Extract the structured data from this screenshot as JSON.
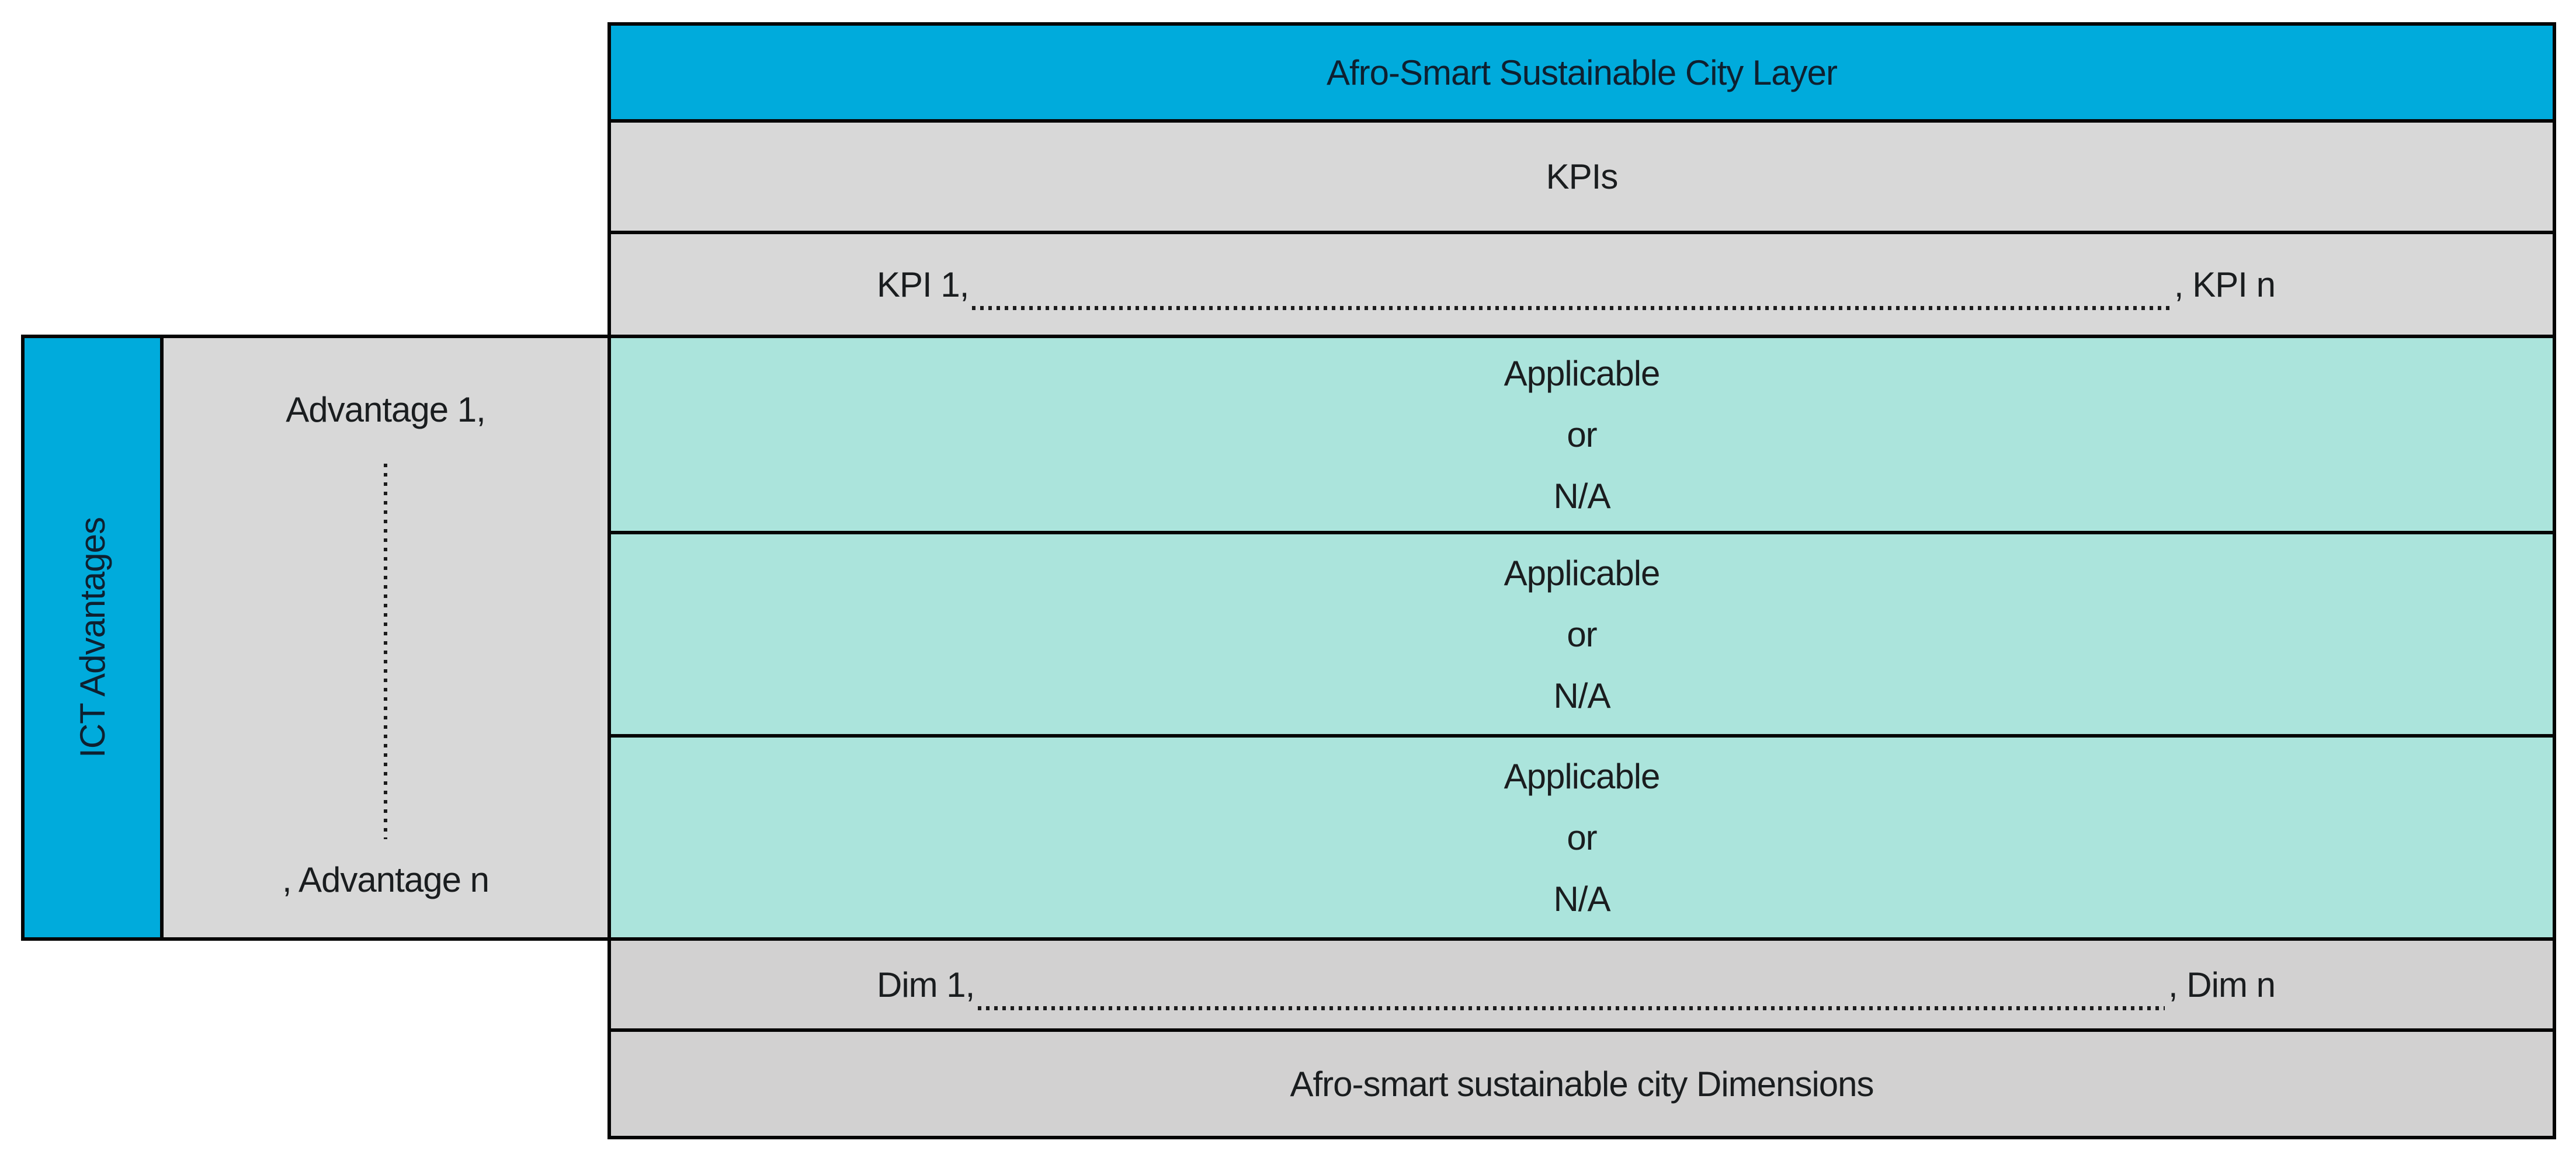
{
  "figure": {
    "header": {
      "title": "Afro-Smart Sustainable City Layer"
    },
    "kpis": {
      "label": "KPIs",
      "range_start": "KPI 1,",
      "range_end": ", KPI n",
      "leader_style": "dotted"
    },
    "applicable_rows": [
      {
        "line1": "Applicable",
        "line2": "or",
        "line3": "N/A"
      },
      {
        "line1": "Applicable",
        "line2": "or",
        "line3": "N/A"
      },
      {
        "line1": "Applicable",
        "line2": "or",
        "line3": "N/A"
      }
    ],
    "dimensions": {
      "range_start": "Dim 1,",
      "range_end": ", Dim n",
      "leader_style": "dotted",
      "label": "Afro-smart sustainable city Dimensions"
    },
    "ict": {
      "bar_label": "ICT Advantages",
      "first_item": "Advantage 1,",
      "last_item": ", Advantage n",
      "ellipsis_style": "vertical-dotted"
    },
    "colors": {
      "cyan": "#00abdc",
      "teal": "#abe4dc",
      "gray_light": "#d8d8d8",
      "gray_dark": "#d2d1d1",
      "border": "#050505",
      "text": "#1a1d1f",
      "text_on_cyan": "#0e2030"
    }
  }
}
